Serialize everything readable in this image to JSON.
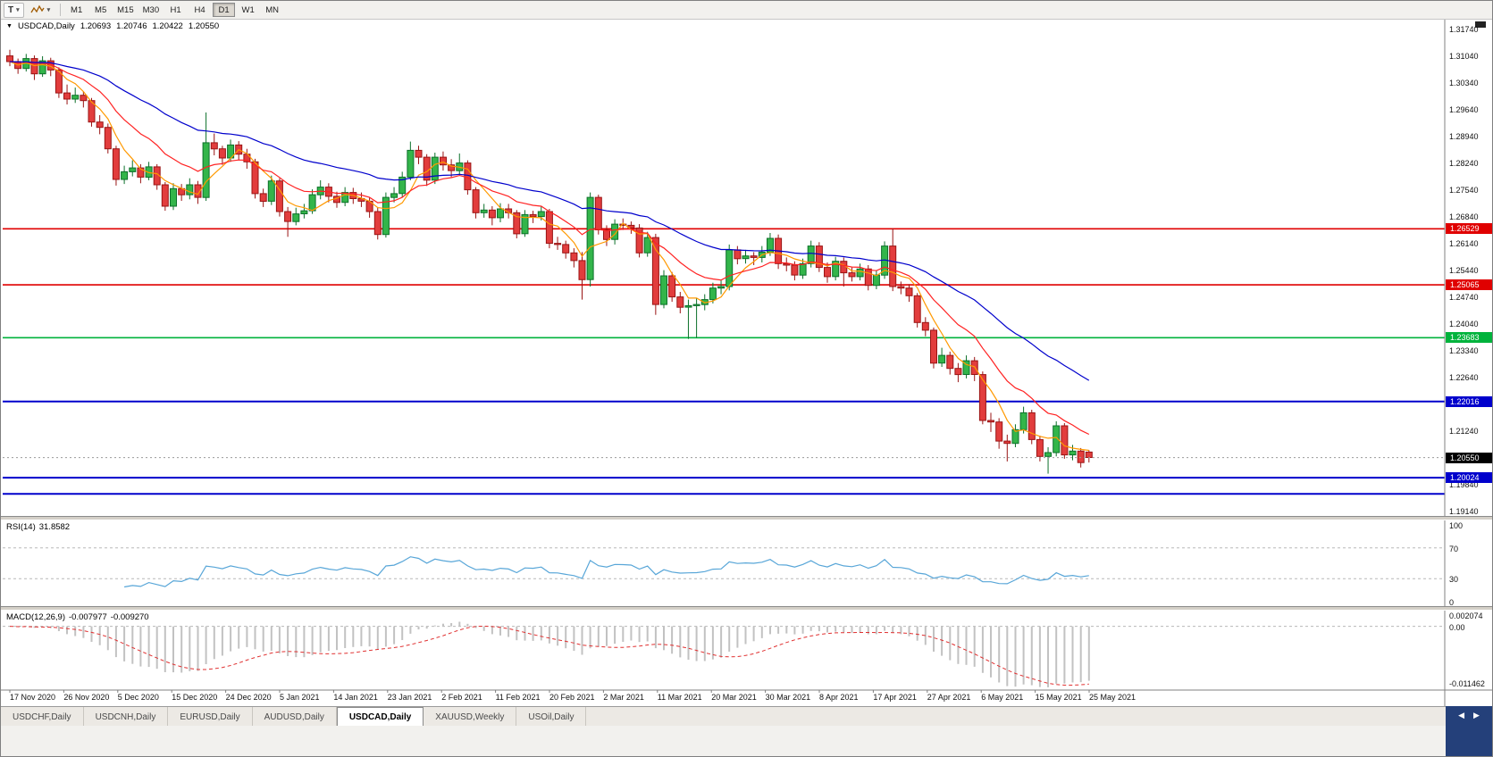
{
  "icons": {
    "dropdown": "▼",
    "caret": "▾",
    "left_arrow": "◀",
    "right_arrow": "▶"
  },
  "toolbar": {
    "text_tool_label": "T",
    "timeframes": [
      "M1",
      "M5",
      "M15",
      "M30",
      "H1",
      "H4",
      "D1",
      "W1",
      "MN"
    ],
    "active_timeframe": "D1"
  },
  "quote": {
    "symbol": "USDCAD,Daily",
    "open": "1.20693",
    "high": "1.20746",
    "low": "1.20422",
    "close": "1.20550"
  },
  "main_chart": {
    "price_axis": {
      "max": 1.3174,
      "min": 1.1914,
      "ticks": [
        "1.31740",
        "1.31040",
        "1.30340",
        "1.29640",
        "1.28940",
        "1.28240",
        "1.27540",
        "1.26840",
        "1.26140",
        "1.25440",
        "1.24740",
        "1.24040",
        "1.23340",
        "1.22640",
        "1.21940",
        "1.21240",
        "1.20540",
        "1.19840",
        "1.19140"
      ]
    },
    "hlines": [
      {
        "price": 1.26529,
        "label": "1.26529",
        "color": "#e00000",
        "width": 1.6
      },
      {
        "price": 1.25065,
        "label": "1.25065",
        "color": "#e00000",
        "width": 1.6
      },
      {
        "price": 1.23683,
        "label": "1.23683",
        "color": "#00b33c",
        "width": 1.6
      },
      {
        "price": 1.22016,
        "label": "1.22016",
        "color": "#0000cc",
        "width": 2
      },
      {
        "price": 1.20024,
        "label": "1.20024",
        "color": "#0000cc",
        "width": 2
      },
      {
        "price": 1.196,
        "label": "",
        "color": "#0000cc",
        "width": 2
      }
    ],
    "current_price": {
      "price": 1.2055,
      "value": "1.20550",
      "color": "#000000"
    },
    "moving_averages": [
      {
        "name": "fast-ma-line",
        "type": "sma",
        "period": 5,
        "color": "#ff9900"
      },
      {
        "name": "mid-ma-line",
        "type": "ema",
        "period": 13,
        "color": "#ff2222"
      },
      {
        "name": "slow-ma-line",
        "type": "ema",
        "period": 34,
        "color": "#0000cc"
      }
    ]
  },
  "chart_data": {
    "type": "candlestick",
    "symbol": "USDCAD",
    "timeframe": "Daily",
    "candle_colors": {
      "up": "#33b54a",
      "down": "#e23d3d",
      "up_border": "#0c702a",
      "down_border": "#991414"
    },
    "first_open": 1.3105,
    "last_candle": {
      "open": 1.20693,
      "high": 1.20746,
      "low": 1.20422,
      "close": 1.2055
    },
    "close": [
      1.309,
      1.3072,
      1.3098,
      1.3058,
      1.3092,
      1.3068,
      1.3008,
      1.2992,
      1.3002,
      1.2988,
      1.2932,
      1.2918,
      1.2862,
      1.2782,
      1.2802,
      1.2812,
      1.2788,
      1.2815,
      1.2768,
      1.2712,
      1.2758,
      1.2742,
      1.2768,
      1.2735,
      1.2878,
      1.2862,
      1.2838,
      1.2872,
      1.2848,
      1.2828,
      1.2745,
      1.2725,
      1.2778,
      1.2698,
      1.2672,
      1.2692,
      1.27,
      1.2742,
      1.2762,
      1.2738,
      1.2722,
      1.2748,
      1.2732,
      1.2725,
      1.2698,
      1.2638,
      1.2735,
      1.2745,
      1.2788,
      1.2858,
      1.284,
      1.278,
      1.284,
      1.282,
      1.2805,
      1.2825,
      1.2755,
      1.2695,
      1.2702,
      1.2682,
      1.2705,
      1.2695,
      1.264,
      1.269,
      1.2685,
      1.2698,
      1.2615,
      1.2612,
      1.259,
      1.257,
      1.252,
      1.2735,
      1.265,
      1.2625,
      1.2665,
      1.2662,
      1.2655,
      1.259,
      1.263,
      1.2455,
      1.253,
      1.2475,
      1.2448,
      1.2452,
      1.2455,
      1.2468,
      1.2498,
      1.2502,
      1.2598,
      1.2575,
      1.2582,
      1.2578,
      1.2592,
      1.2628,
      1.2562,
      1.2558,
      1.2532,
      1.2562,
      1.2608,
      1.2552,
      1.2528,
      1.2568,
      1.2538,
      1.2528,
      1.2548,
      1.2505,
      1.2532,
      1.2608,
      1.2502,
      1.2498,
      1.2478,
      1.2408,
      1.2388,
      1.2302,
      1.2322,
      1.2288,
      1.2272,
      1.2308,
      1.2272,
      1.2152,
      1.2148,
      1.2098,
      1.2092,
      1.2128,
      1.2172,
      1.2102,
      1.2058,
      1.2068,
      1.2138,
      1.2062,
      1.2072,
      1.2042,
      1.2055
    ],
    "high": [
      1.3121,
      1.3098,
      1.311,
      1.3106,
      1.3104,
      1.31,
      1.3075,
      1.303,
      1.3022,
      1.3012,
      1.2995,
      1.295,
      1.2928,
      1.287,
      1.2818,
      1.2832,
      1.2822,
      1.2828,
      1.2822,
      1.2775,
      1.2772,
      1.277,
      1.2785,
      1.2778,
      1.2957,
      1.2902,
      1.287,
      1.2886,
      1.2882,
      1.2862,
      1.2836,
      1.2758,
      1.2792,
      1.2785,
      1.271,
      1.2708,
      1.2718,
      1.2756,
      1.278,
      1.2772,
      1.275,
      1.2762,
      1.276,
      1.2748,
      1.2735,
      1.2708,
      1.2748,
      1.2762,
      1.2802,
      1.2881,
      1.287,
      1.2848,
      1.2852,
      1.2855,
      1.2835,
      1.285,
      1.2832,
      1.2762,
      1.2718,
      1.2712,
      1.272,
      1.2718,
      1.2702,
      1.2702,
      1.27,
      1.2712,
      1.2705,
      1.2632,
      1.2622,
      1.2602,
      1.2592,
      1.2748,
      1.2742,
      1.2662,
      1.2678,
      1.268,
      1.2672,
      1.2665,
      1.2645,
      1.264,
      1.2545,
      1.254,
      1.2488,
      1.2468,
      1.2472,
      1.2482,
      1.2512,
      1.2518,
      1.2612,
      1.2608,
      1.2598,
      1.2592,
      1.2608,
      1.2642,
      1.2638,
      1.2578,
      1.2568,
      1.2575,
      1.2622,
      1.2618,
      1.2565,
      1.258,
      1.2578,
      1.2552,
      1.2562,
      1.2558,
      1.2545,
      1.262,
      1.2654,
      1.2515,
      1.2508,
      1.2485,
      1.2422,
      1.2395,
      1.2342,
      1.2332,
      1.2302,
      1.2322,
      1.2318,
      1.228,
      1.2172,
      1.2158,
      1.2115,
      1.2142,
      1.2188,
      1.218,
      1.2112,
      1.2082,
      1.215,
      1.2145,
      1.2088,
      1.208,
      1.20746
    ],
    "low": [
      1.3078,
      1.3058,
      1.3064,
      1.3042,
      1.305,
      1.3052,
      1.2995,
      1.2978,
      1.2982,
      1.297,
      1.292,
      1.29,
      1.285,
      1.2766,
      1.277,
      1.279,
      1.2772,
      1.278,
      1.2755,
      1.27,
      1.2702,
      1.2726,
      1.273,
      1.2718,
      1.2726,
      1.2845,
      1.282,
      1.2828,
      1.2832,
      1.281,
      1.2732,
      1.271,
      1.2715,
      1.2685,
      1.2632,
      1.2662,
      1.268,
      1.2692,
      1.273,
      1.2722,
      1.2708,
      1.2712,
      1.2718,
      1.271,
      1.2682,
      1.2625,
      1.263,
      1.2722,
      1.2736,
      1.278,
      1.2822,
      1.2765,
      1.277,
      1.2805,
      1.2788,
      1.2795,
      1.2742,
      1.268,
      1.2682,
      1.2662,
      1.267,
      1.268,
      1.2628,
      1.2632,
      1.2668,
      1.2675,
      1.2602,
      1.2598,
      1.2575,
      1.2552,
      1.2468,
      1.2502,
      1.2638,
      1.2608,
      1.2612,
      1.265,
      1.264,
      1.2578,
      1.258,
      1.2428,
      1.2445,
      1.2462,
      1.2432,
      1.2365,
      1.2368,
      1.244,
      1.2458,
      1.2482,
      1.2492,
      1.256,
      1.2562,
      1.2558,
      1.2565,
      1.2582,
      1.2548,
      1.2542,
      1.2518,
      1.2522,
      1.2552,
      1.254,
      1.2512,
      1.2518,
      1.2502,
      1.2515,
      1.2518,
      1.2492,
      1.2495,
      1.2522,
      1.249,
      1.2482,
      1.2462,
      1.2395,
      1.2372,
      1.2288,
      1.2292,
      1.2272,
      1.2252,
      1.2262,
      1.2255,
      1.2142,
      1.2122,
      1.2078,
      1.2045,
      1.2082,
      1.2118,
      1.209,
      1.2045,
      1.2013,
      1.2058,
      1.2052,
      1.2048,
      1.2029,
      1.20422
    ],
    "x_labels": [
      "17 Nov 2020",
      "26 Nov 2020",
      "5 Dec 2020",
      "15 Dec 2020",
      "24 Dec 2020",
      "5 Jan 2021",
      "14 Jan 2021",
      "23 Jan 2021",
      "2 Feb 2021",
      "11 Feb 2021",
      "20 Feb 2021",
      "2 Mar 2021",
      "11 Mar 2021",
      "20 Mar 2021",
      "30 Mar 2021",
      "8 Apr 2021",
      "17 Apr 2021",
      "27 Apr 2021",
      "6 May 2021",
      "15 May 2021",
      "25 May 2021"
    ]
  },
  "rsi": {
    "label": "RSI(14)",
    "value": "31.8582",
    "period": 14,
    "levels": [
      70,
      30
    ],
    "axis_labels": [
      "100",
      "70",
      "30",
      "0"
    ],
    "color": "#58a6d8"
  },
  "macd": {
    "label": "MACD(12,26,9)",
    "main_value": "-0.007977",
    "signal_value": "-0.009270",
    "fast": 12,
    "slow": 26,
    "signal": 9,
    "hist_color": "#c2c2c2",
    "signal_color": "#e03030",
    "axis": {
      "max_label": "0.002074",
      "zero_label": "0.00",
      "min_label": "-0.011462",
      "max": 0.002074,
      "min": -0.011462
    }
  },
  "tabs": {
    "items": [
      {
        "label": "USDCHF,Daily",
        "active": false
      },
      {
        "label": "USDCNH,Daily",
        "active": false
      },
      {
        "label": "EURUSD,Daily",
        "active": false
      },
      {
        "label": "AUDUSD,Daily",
        "active": false
      },
      {
        "label": "USDCAD,Daily",
        "active": true
      },
      {
        "label": "XAUUSD,Weekly",
        "active": false
      },
      {
        "label": "USOil,Daily",
        "active": false
      }
    ]
  }
}
